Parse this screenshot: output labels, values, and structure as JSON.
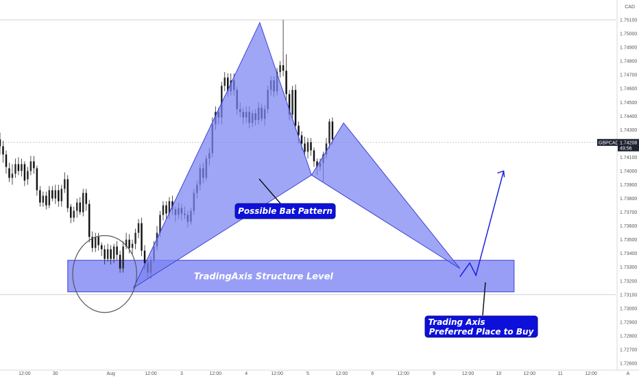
{
  "chart_data": {
    "type": "candlestick",
    "symbol": "GBPCAD",
    "currency_label": "CAD",
    "price_tag": {
      "symbol": "GBPCAD",
      "price": "1.74208",
      "countdown": "49:56",
      "value": 1.74208
    },
    "y_axis": {
      "range": [
        1.7255,
        1.7522
      ],
      "tick_labels": [
        "1.75100",
        "1.75000",
        "1.74900",
        "1.74800",
        "1.74700",
        "1.74600",
        "1.74500",
        "1.74400",
        "1.74300",
        "1.74100",
        "1.74000",
        "1.73900",
        "1.73800",
        "1.73700",
        "1.73600",
        "1.73500",
        "1.73400",
        "1.73300",
        "1.73200",
        "1.73100",
        "1.73000",
        "1.72900",
        "1.72800",
        "1.72700",
        "1.72600"
      ]
    },
    "x_axis": {
      "range": [
        0,
        100
      ],
      "tick_labels": [
        {
          "label": "12:00",
          "x": 4
        },
        {
          "label": "30",
          "x": 9
        },
        {
          "label": "Aug",
          "x": 18
        },
        {
          "label": "12:00",
          "x": 24.5
        },
        {
          "label": "3",
          "x": 29.5
        },
        {
          "label": "12:00",
          "x": 35
        },
        {
          "label": "4",
          "x": 40
        },
        {
          "label": "12:00",
          "x": 45
        },
        {
          "label": "5",
          "x": 50
        },
        {
          "label": "12:00",
          "x": 55.5
        },
        {
          "label": "6",
          "x": 60.5
        },
        {
          "label": "12:00",
          "x": 65.5
        },
        {
          "label": "9",
          "x": 70.5
        },
        {
          "label": "12:00",
          "x": 76
        },
        {
          "label": "10",
          "x": 81
        },
        {
          "label": "12:00",
          "x": 86
        },
        {
          "label": "11",
          "x": 91
        },
        {
          "label": "12:00",
          "x": 96
        }
      ],
      "corner_label": "A"
    },
    "structure_level": {
      "label": "TradingAxis Structure Level",
      "top": 1.7335,
      "bottom": 1.7312,
      "x_start": 11,
      "x_end": 83.5
    },
    "pattern": {
      "label": "Possible Bat Pattern",
      "X": {
        "x": 21.7,
        "y": 1.7315
      },
      "A": {
        "x": 42.2,
        "y": 1.7508
      },
      "B": {
        "x": 50.6,
        "y": 1.7397
      },
      "C": {
        "x": 55.8,
        "y": 1.7435
      },
      "D": {
        "x": 74.7,
        "y": 1.7329
      }
    },
    "projection_path": [
      {
        "x": 74.7,
        "y": 1.7323
      },
      {
        "x": 76.3,
        "y": 1.7333
      },
      {
        "x": 77.3,
        "y": 1.7324
      },
      {
        "x": 81.8,
        "y": 1.74
      }
    ],
    "preferred_buy_label": [
      "Trading Axis",
      "Preferred Place to Buy"
    ],
    "candles": [
      [
        0,
        1.7423,
        1.7418,
        1.7428,
        1.7412
      ],
      [
        0.5,
        1.7418,
        1.7412,
        1.7422,
        1.7406
      ],
      [
        1,
        1.7412,
        1.7403,
        1.7415,
        1.7398
      ],
      [
        1.5,
        1.7402,
        1.7395,
        1.7406,
        1.7392
      ],
      [
        2,
        1.7395,
        1.7398,
        1.7405,
        1.739
      ],
      [
        2.5,
        1.7398,
        1.7405,
        1.7409,
        1.7395
      ],
      [
        3,
        1.7405,
        1.74,
        1.741,
        1.7397
      ],
      [
        3.5,
        1.74,
        1.7405,
        1.7409,
        1.7396
      ],
      [
        4,
        1.7405,
        1.7393,
        1.7407,
        1.7389
      ],
      [
        4.5,
        1.7394,
        1.74,
        1.7403,
        1.739
      ],
      [
        5,
        1.74,
        1.7407,
        1.7411,
        1.7397
      ],
      [
        5.5,
        1.7407,
        1.7402,
        1.7411,
        1.7398
      ],
      [
        6,
        1.7402,
        1.7386,
        1.7404,
        1.7382
      ],
      [
        6.5,
        1.7386,
        1.7377,
        1.7389,
        1.7374
      ],
      [
        7,
        1.7377,
        1.7382,
        1.7385,
        1.7374
      ],
      [
        7.5,
        1.7382,
        1.7375,
        1.7385,
        1.7372
      ],
      [
        8,
        1.7375,
        1.7386,
        1.7389,
        1.7373
      ],
      [
        8.5,
        1.7386,
        1.738,
        1.7389,
        1.7378
      ],
      [
        9,
        1.738,
        1.7386,
        1.739,
        1.7376
      ],
      [
        9.5,
        1.7386,
        1.7378,
        1.739,
        1.7374
      ],
      [
        10,
        1.7378,
        1.7387,
        1.739,
        1.7374
      ],
      [
        10.5,
        1.7387,
        1.7394,
        1.7399,
        1.7384
      ],
      [
        11,
        1.7394,
        1.7373,
        1.7397,
        1.737
      ],
      [
        11.5,
        1.7374,
        1.7366,
        1.7376,
        1.7362
      ],
      [
        12,
        1.7366,
        1.7371,
        1.7374,
        1.7363
      ],
      [
        12.5,
        1.7371,
        1.7377,
        1.738,
        1.7366
      ],
      [
        13,
        1.7377,
        1.737,
        1.7381,
        1.7368
      ],
      [
        13.5,
        1.737,
        1.7384,
        1.7387,
        1.7367
      ],
      [
        14,
        1.7384,
        1.7376,
        1.7387,
        1.7371
      ],
      [
        14.5,
        1.7376,
        1.7352,
        1.7379,
        1.7348
      ],
      [
        15,
        1.7352,
        1.7344,
        1.7356,
        1.7341
      ],
      [
        15.5,
        1.7344,
        1.7352,
        1.7355,
        1.7341
      ],
      [
        16,
        1.7352,
        1.7346,
        1.7355,
        1.7342
      ],
      [
        16.5,
        1.7346,
        1.7343,
        1.7348,
        1.7338
      ],
      [
        17,
        1.7343,
        1.7336,
        1.7346,
        1.7332
      ],
      [
        17.5,
        1.7336,
        1.7343,
        1.7347,
        1.7334
      ],
      [
        18,
        1.7343,
        1.7336,
        1.7346,
        1.7332
      ],
      [
        18.5,
        1.7336,
        1.7345,
        1.7347,
        1.7333
      ],
      [
        19,
        1.7345,
        1.7339,
        1.7349,
        1.7335
      ],
      [
        19.5,
        1.7339,
        1.7329,
        1.7342,
        1.7326
      ],
      [
        20,
        1.7329,
        1.7345,
        1.7349,
        1.7326
      ],
      [
        20.5,
        1.7345,
        1.735,
        1.7355,
        1.7343
      ],
      [
        21,
        1.735,
        1.7344,
        1.7354,
        1.734
      ],
      [
        21.5,
        1.7344,
        1.7347,
        1.735,
        1.7339
      ],
      [
        22,
        1.7347,
        1.7355,
        1.7358,
        1.7343
      ],
      [
        22.5,
        1.7355,
        1.7362,
        1.7365,
        1.7351
      ],
      [
        23,
        1.7362,
        1.7342,
        1.7366,
        1.7338
      ],
      [
        23.5,
        1.7342,
        1.7333,
        1.7346,
        1.7328
      ],
      [
        24,
        1.7333,
        1.7326,
        1.7335,
        1.7322
      ],
      [
        24.5,
        1.7326,
        1.7335,
        1.7338,
        1.7322
      ],
      [
        25,
        1.7335,
        1.7345,
        1.7349,
        1.7333
      ],
      [
        25.5,
        1.7345,
        1.7355,
        1.736,
        1.7342
      ],
      [
        26,
        1.7355,
        1.7368,
        1.7371,
        1.7352
      ],
      [
        26.5,
        1.7368,
        1.7375,
        1.7378,
        1.7364
      ],
      [
        27,
        1.7375,
        1.7369,
        1.7378,
        1.7365
      ],
      [
        27.5,
        1.7369,
        1.7378,
        1.7381,
        1.7365
      ],
      [
        28,
        1.7378,
        1.7372,
        1.7382,
        1.7368
      ],
      [
        28.5,
        1.7372,
        1.7368,
        1.7374,
        1.7363
      ],
      [
        29,
        1.7368,
        1.7373,
        1.7377,
        1.7365
      ],
      [
        29.5,
        1.7373,
        1.7369,
        1.7376,
        1.7364
      ],
      [
        30,
        1.7369,
        1.7368,
        1.7374,
        1.7365
      ],
      [
        30.5,
        1.7368,
        1.7363,
        1.7371,
        1.7359
      ],
      [
        31,
        1.7363,
        1.7371,
        1.7373,
        1.7361
      ],
      [
        31.5,
        1.7371,
        1.7384,
        1.7387,
        1.7368
      ],
      [
        32,
        1.7384,
        1.739,
        1.7393,
        1.738
      ],
      [
        32.5,
        1.739,
        1.7402,
        1.7405,
        1.7386
      ],
      [
        33,
        1.7402,
        1.7395,
        1.7406,
        1.7391
      ],
      [
        33.5,
        1.7395,
        1.7409,
        1.7411,
        1.7393
      ],
      [
        34,
        1.7409,
        1.7413,
        1.7417,
        1.7404
      ],
      [
        34.5,
        1.7413,
        1.7434,
        1.7439,
        1.741
      ],
      [
        35,
        1.7434,
        1.7443,
        1.7447,
        1.743
      ],
      [
        35.5,
        1.7443,
        1.7439,
        1.7446,
        1.7434
      ],
      [
        36,
        1.7439,
        1.7462,
        1.7465,
        1.7434
      ],
      [
        36.5,
        1.7462,
        1.7468,
        1.7472,
        1.7458
      ],
      [
        37,
        1.7468,
        1.7458,
        1.7471,
        1.7454
      ],
      [
        37.5,
        1.7458,
        1.7466,
        1.7471,
        1.7455
      ],
      [
        38,
        1.7466,
        1.7459,
        1.7471,
        1.7455
      ],
      [
        38.5,
        1.7459,
        1.7445,
        1.7461,
        1.7441
      ],
      [
        39,
        1.7445,
        1.7443,
        1.745,
        1.7439
      ],
      [
        39.5,
        1.7443,
        1.7439,
        1.7446,
        1.7434
      ],
      [
        40,
        1.7439,
        1.7443,
        1.7447,
        1.7435
      ],
      [
        40.5,
        1.7443,
        1.7435,
        1.7447,
        1.7431
      ],
      [
        41,
        1.7435,
        1.7442,
        1.7444,
        1.7432
      ],
      [
        41.5,
        1.7442,
        1.7437,
        1.7445,
        1.7433
      ],
      [
        42,
        1.7437,
        1.7446,
        1.745,
        1.7434
      ],
      [
        42.5,
        1.7446,
        1.7438,
        1.7449,
        1.7436
      ],
      [
        43,
        1.7438,
        1.7445,
        1.7448,
        1.7433
      ],
      [
        43.5,
        1.7445,
        1.7459,
        1.7462,
        1.7442
      ],
      [
        44,
        1.7459,
        1.7466,
        1.7469,
        1.7455
      ],
      [
        44.5,
        1.7466,
        1.7458,
        1.7469,
        1.7454
      ],
      [
        45,
        1.7458,
        1.7472,
        1.7475,
        1.7455
      ],
      [
        45.5,
        1.7472,
        1.7477,
        1.748,
        1.7468
      ],
      [
        46,
        1.7477,
        1.7473,
        1.751,
        1.7469
      ],
      [
        46.5,
        1.7473,
        1.7456,
        1.7485,
        1.7451
      ],
      [
        47,
        1.7456,
        1.7441,
        1.7459,
        1.7437
      ],
      [
        47.5,
        1.7441,
        1.7459,
        1.7462,
        1.7437
      ],
      [
        48,
        1.7459,
        1.7433,
        1.7463,
        1.743
      ],
      [
        48.5,
        1.7433,
        1.7426,
        1.7436,
        1.742
      ],
      [
        49,
        1.7426,
        1.742,
        1.7429,
        1.7415
      ],
      [
        49.5,
        1.742,
        1.7414,
        1.7425,
        1.7411
      ],
      [
        50,
        1.7414,
        1.7421,
        1.7424,
        1.7409
      ],
      [
        50.5,
        1.7421,
        1.7415,
        1.7424,
        1.7411
      ],
      [
        51,
        1.7415,
        1.7407,
        1.7417,
        1.7403
      ],
      [
        51.5,
        1.7407,
        1.7403,
        1.7409,
        1.7397
      ],
      [
        52,
        1.7403,
        1.7406,
        1.7409,
        1.74
      ],
      [
        52.5,
        1.7406,
        1.7412,
        1.7414,
        1.7392
      ],
      [
        53,
        1.7412,
        1.742,
        1.7424,
        1.7409
      ],
      [
        53.5,
        1.742,
        1.7436,
        1.7438,
        1.7416
      ],
      [
        54,
        1.7436,
        1.7423,
        1.7439,
        1.7419
      ]
    ]
  },
  "colors": {
    "pattern_fill": "#7b83f2",
    "pattern_edge": "#3b3fd6",
    "label_bg": "#0d10d8",
    "candle": "#1e1e1e",
    "axis_text": "#555555",
    "price_tag_bg": "#1e2330",
    "gridline": "#d0d0d0"
  }
}
